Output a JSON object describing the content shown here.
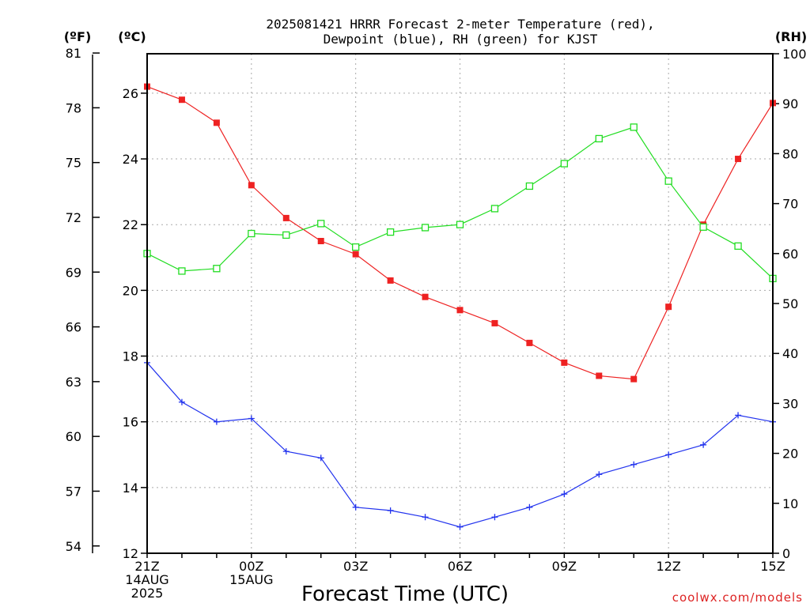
{
  "chart_data": {
    "type": "line",
    "title": [
      "2025081421 HRRR Forecast 2-meter Temperature (red),",
      "Dewpoint (blue), RH (green) for KJST"
    ],
    "xlabel": "Forecast Time (UTC)",
    "unit_labels": {
      "fahrenheit": "(ºF)",
      "celsius": "(ºC)",
      "rh": "(RH)"
    },
    "credit": "coolwx.com/models",
    "x": [
      0,
      1,
      2,
      3,
      4,
      5,
      6,
      7,
      8,
      9,
      10,
      11,
      12,
      13,
      14,
      15,
      16,
      17,
      18
    ],
    "xlim": [
      0,
      18
    ],
    "x_ticks": [
      {
        "pos": 0,
        "lines": [
          "21Z",
          "14AUG",
          "2025"
        ]
      },
      {
        "pos": 3,
        "lines": [
          "00Z",
          "15AUG"
        ]
      },
      {
        "pos": 6,
        "lines": [
          "03Z"
        ]
      },
      {
        "pos": 9,
        "lines": [
          "06Z"
        ]
      },
      {
        "pos": 12,
        "lines": [
          "09Z"
        ]
      },
      {
        "pos": 15,
        "lines": [
          "12Z"
        ]
      },
      {
        "pos": 18,
        "lines": [
          "15Z"
        ]
      }
    ],
    "y_celsius": {
      "lim": [
        12,
        27.2
      ],
      "ticks": [
        "12",
        "14",
        "16",
        "18",
        "20",
        "22",
        "24",
        "26"
      ]
    },
    "y_fahrenheit": {
      "ticks": [
        "54",
        "57",
        "60",
        "63",
        "66",
        "69",
        "72",
        "75",
        "78",
        "81"
      ]
    },
    "y_rh": {
      "lim": [
        0,
        100
      ],
      "ticks": [
        "0",
        "10",
        "20",
        "30",
        "40",
        "50",
        "60",
        "70",
        "80",
        "90",
        "100"
      ]
    },
    "grid": true,
    "series": [
      {
        "name": "Temperature",
        "axis": "celsius",
        "color": "#ee2222",
        "marker": "filled-square",
        "values": [
          26.2,
          25.8,
          25.1,
          23.2,
          22.2,
          21.5,
          21.1,
          20.3,
          19.8,
          19.4,
          19.0,
          18.4,
          17.8,
          17.4,
          17.3,
          19.5,
          22.0,
          24.0,
          25.7
        ]
      },
      {
        "name": "Dewpoint",
        "axis": "celsius",
        "color": "#2233ee",
        "marker": "plus",
        "values": [
          17.8,
          16.6,
          16.0,
          16.1,
          15.1,
          14.9,
          13.4,
          13.3,
          13.1,
          12.8,
          13.1,
          13.4,
          13.8,
          14.4,
          14.7,
          15.0,
          15.3,
          16.2,
          16.0
        ]
      },
      {
        "name": "RH",
        "axis": "rh",
        "color": "#22dd22",
        "marker": "open-square",
        "values": [
          60,
          56.5,
          57,
          64,
          63.7,
          66,
          61.3,
          64.3,
          65.2,
          65.8,
          69,
          73.5,
          78,
          83,
          85.3,
          74.5,
          65.3,
          61.5,
          55
        ]
      }
    ]
  }
}
